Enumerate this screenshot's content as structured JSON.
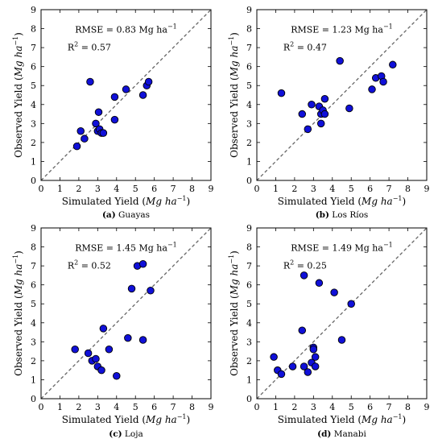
{
  "chart_data": [
    {
      "type": "scatter",
      "caption_id": "(a)",
      "caption_name": "Guayas",
      "xlabel_text": "Simulated Yield",
      "xlabel_unit": "Mg ha",
      "ylabel_text": "Observed Yield",
      "ylabel_unit": "Mg ha",
      "unit_exponent": "−1",
      "rmse_text": "RMSE = 0.83 Mg ha",
      "r2_label": "R",
      "r2_value": " = 0.57",
      "xlim": [
        0,
        9
      ],
      "ylim": [
        0,
        9
      ],
      "ticks": [
        0,
        1,
        2,
        3,
        4,
        5,
        6,
        7,
        8,
        9
      ],
      "one_to_one_line": true,
      "marker_color": "#1010d8",
      "points": [
        {
          "x": 1.9,
          "y": 1.8
        },
        {
          "x": 2.1,
          "y": 2.6
        },
        {
          "x": 2.3,
          "y": 2.2
        },
        {
          "x": 2.6,
          "y": 5.2
        },
        {
          "x": 2.9,
          "y": 3.0
        },
        {
          "x": 3.0,
          "y": 2.6
        },
        {
          "x": 3.05,
          "y": 3.6
        },
        {
          "x": 3.1,
          "y": 2.7
        },
        {
          "x": 3.2,
          "y": 2.5
        },
        {
          "x": 3.3,
          "y": 2.5
        },
        {
          "x": 3.9,
          "y": 3.2
        },
        {
          "x": 3.9,
          "y": 4.4
        },
        {
          "x": 4.5,
          "y": 4.8
        },
        {
          "x": 5.4,
          "y": 4.5
        },
        {
          "x": 5.6,
          "y": 5.0
        },
        {
          "x": 5.7,
          "y": 5.2
        }
      ]
    },
    {
      "type": "scatter",
      "caption_id": "(b)",
      "caption_name": "Los Ríos",
      "xlabel_text": "Simulated Yield",
      "xlabel_unit": "Mg ha",
      "ylabel_text": "Observed Yield",
      "ylabel_unit": "Mg ha",
      "unit_exponent": "−1",
      "rmse_text": "RMSE = 1.23 Mg ha",
      "r2_label": "R",
      "r2_value": " = 0.47",
      "xlim": [
        0,
        9
      ],
      "ylim": [
        0,
        9
      ],
      "ticks": [
        0,
        1,
        2,
        3,
        4,
        5,
        6,
        7,
        8,
        9
      ],
      "one_to_one_line": true,
      "marker_color": "#1010d8",
      "points": [
        {
          "x": 1.3,
          "y": 4.6
        },
        {
          "x": 2.4,
          "y": 3.5
        },
        {
          "x": 2.7,
          "y": 2.7
        },
        {
          "x": 2.9,
          "y": 4.0
        },
        {
          "x": 3.3,
          "y": 3.9
        },
        {
          "x": 3.4,
          "y": 3.0
        },
        {
          "x": 3.4,
          "y": 3.5
        },
        {
          "x": 3.5,
          "y": 3.7
        },
        {
          "x": 3.6,
          "y": 4.3
        },
        {
          "x": 3.6,
          "y": 3.5
        },
        {
          "x": 4.4,
          "y": 6.3
        },
        {
          "x": 4.9,
          "y": 3.8
        },
        {
          "x": 6.1,
          "y": 4.8
        },
        {
          "x": 6.3,
          "y": 5.4
        },
        {
          "x": 6.6,
          "y": 5.5
        },
        {
          "x": 6.7,
          "y": 5.2
        },
        {
          "x": 7.2,
          "y": 6.1
        }
      ]
    },
    {
      "type": "scatter",
      "caption_id": "(c)",
      "caption_name": "Loja",
      "xlabel_text": "Simulated Yield",
      "xlabel_unit": "Mg ha",
      "ylabel_text": "Observed Yield",
      "ylabel_unit": "Mg ha",
      "unit_exponent": "−1",
      "rmse_text": "RMSE = 1.45 Mg ha",
      "r2_label": "R",
      "r2_value": " = 0.52",
      "xlim": [
        0,
        9
      ],
      "ylim": [
        0,
        9
      ],
      "ticks": [
        0,
        1,
        2,
        3,
        4,
        5,
        6,
        7,
        8,
        9
      ],
      "one_to_one_line": true,
      "marker_color": "#1010d8",
      "points": [
        {
          "x": 1.8,
          "y": 2.6
        },
        {
          "x": 2.5,
          "y": 2.4
        },
        {
          "x": 2.7,
          "y": 2.0
        },
        {
          "x": 2.9,
          "y": 2.1
        },
        {
          "x": 3.0,
          "y": 1.7
        },
        {
          "x": 3.2,
          "y": 1.5
        },
        {
          "x": 3.3,
          "y": 3.7
        },
        {
          "x": 3.6,
          "y": 2.6
        },
        {
          "x": 4.0,
          "y": 1.2
        },
        {
          "x": 4.6,
          "y": 3.2
        },
        {
          "x": 4.8,
          "y": 5.8
        },
        {
          "x": 5.1,
          "y": 7.0
        },
        {
          "x": 5.4,
          "y": 7.1
        },
        {
          "x": 5.4,
          "y": 3.1
        },
        {
          "x": 5.8,
          "y": 5.7
        }
      ]
    },
    {
      "type": "scatter",
      "caption_id": "(d)",
      "caption_name": "Manabi",
      "xlabel_text": "Simulated Yield",
      "xlabel_unit": "Mg ha",
      "ylabel_text": "Observed Yield",
      "ylabel_unit": "Mg ha",
      "unit_exponent": "−1",
      "rmse_text": "RMSE = 1.49 Mg ha",
      "r2_label": "R",
      "r2_value": " = 0.25",
      "xlim": [
        0,
        9
      ],
      "ylim": [
        0,
        9
      ],
      "ticks": [
        0,
        1,
        2,
        3,
        4,
        5,
        6,
        7,
        8,
        9
      ],
      "one_to_one_line": true,
      "marker_color": "#1010d8",
      "points": [
        {
          "x": 0.9,
          "y": 2.2
        },
        {
          "x": 1.1,
          "y": 1.5
        },
        {
          "x": 1.3,
          "y": 1.3
        },
        {
          "x": 1.9,
          "y": 1.7
        },
        {
          "x": 2.4,
          "y": 3.6
        },
        {
          "x": 2.5,
          "y": 6.5
        },
        {
          "x": 2.5,
          "y": 1.7
        },
        {
          "x": 2.7,
          "y": 1.4
        },
        {
          "x": 2.9,
          "y": 1.9
        },
        {
          "x": 3.0,
          "y": 2.7
        },
        {
          "x": 3.0,
          "y": 2.6
        },
        {
          "x": 3.1,
          "y": 2.2
        },
        {
          "x": 3.1,
          "y": 1.7
        },
        {
          "x": 3.3,
          "y": 6.1
        },
        {
          "x": 4.1,
          "y": 5.6
        },
        {
          "x": 4.5,
          "y": 3.1
        },
        {
          "x": 5.0,
          "y": 5.0
        }
      ]
    }
  ]
}
